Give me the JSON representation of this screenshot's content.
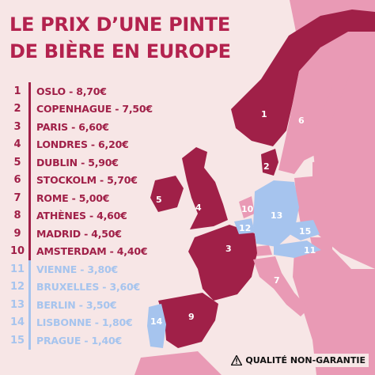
{
  "title": {
    "line1": "LE PRIX D’UNE PINTE",
    "line2": "DE BIÈRE EN EUROPE"
  },
  "ranking": [
    {
      "rank": "1",
      "label": "OSLO - 8,70€",
      "tier": "top"
    },
    {
      "rank": "2",
      "label": "COPENHAGUE - 7,50€",
      "tier": "top"
    },
    {
      "rank": "3",
      "label": "PARIS - 6,60€",
      "tier": "top"
    },
    {
      "rank": "4",
      "label": "LONDRES - 6,20€",
      "tier": "top"
    },
    {
      "rank": "5",
      "label": "DUBLIN - 5,90€",
      "tier": "top"
    },
    {
      "rank": "6",
      "label": "STOCKOLM - 5,70€",
      "tier": "top"
    },
    {
      "rank": "7",
      "label": "ROME - 5,00€",
      "tier": "top"
    },
    {
      "rank": "8",
      "label": "ATHÈNES - 4,60€",
      "tier": "top"
    },
    {
      "rank": "9",
      "label": "MADRID - 4,50€",
      "tier": "top"
    },
    {
      "rank": "10",
      "label": "AMSTERDAM - 4,40€",
      "tier": "top"
    },
    {
      "rank": "11",
      "label": "VIENNE - 3,80€",
      "tier": "low"
    },
    {
      "rank": "12",
      "label": "BRUXELLES - 3,60€",
      "tier": "low"
    },
    {
      "rank": "13",
      "label": "BERLIN - 3,50€",
      "tier": "low"
    },
    {
      "rank": "14",
      "label": "LISBONNE - 1,80€",
      "tier": "low"
    },
    {
      "rank": "15",
      "label": "PRAGUE - 1,40€",
      "tier": "low"
    }
  ],
  "map": {
    "labels": {
      "norway": "1",
      "denmark": "2",
      "france": "3",
      "uk": "4",
      "ireland": "5",
      "sweden": "6",
      "italy": "7",
      "spain": "9",
      "netherlands": "10",
      "austria": "11",
      "belgium": "12",
      "germany": "13",
      "portugal": "14",
      "czechia": "15"
    }
  },
  "disclaimer": {
    "text": "QUALITÉ NON-GARANTIE",
    "icon": "warning-icon"
  },
  "colors": {
    "background": "#f7e6e6",
    "top_tier": "#a02048",
    "low_tier": "#a6c4ee",
    "title": "#b3224e",
    "other_countries": "#e99ab5",
    "sea": "#f7e6e6"
  }
}
